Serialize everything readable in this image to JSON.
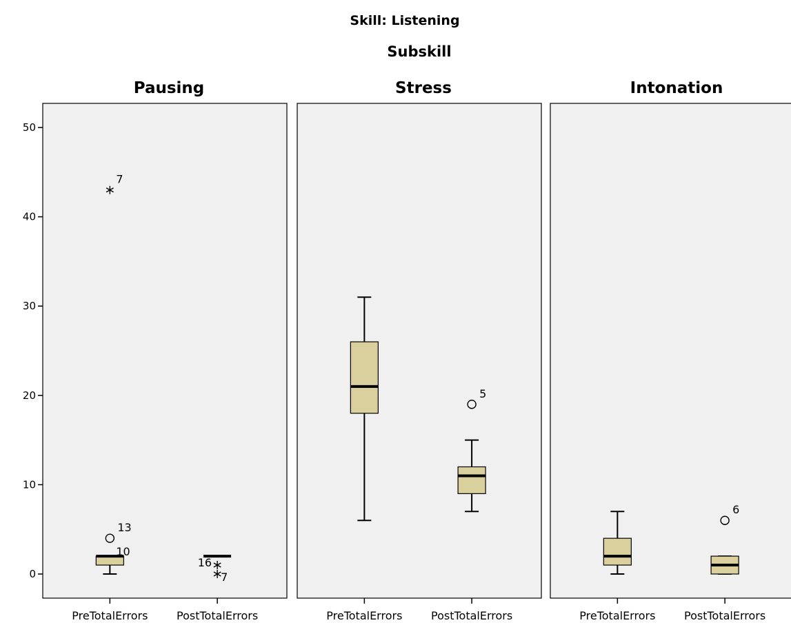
{
  "chart_data": {
    "type": "boxplot",
    "title": "Skill: Listening",
    "subtitle": "Subskill",
    "ylim": [
      -3,
      52
    ],
    "yticks": [
      0,
      10,
      20,
      30,
      40,
      50
    ],
    "categories": [
      "PreTotalErrors",
      "PostTotalErrors"
    ],
    "colors": {
      "box_fill": "#d9d09d",
      "panel_bg": "#f0f0f0",
      "stroke": "#000000"
    },
    "panels": [
      {
        "name": "Pausing",
        "boxes": [
          {
            "category": "PreTotalErrors",
            "min": 0,
            "q1": 1,
            "median": 2,
            "q3": 2,
            "max": 2,
            "outliers": [
              {
                "value": 43,
                "label": "7",
                "marker": "star"
              },
              {
                "value": 4,
                "label": "13",
                "marker": "circle"
              },
              {
                "value": 2,
                "label": "10",
                "marker": "none"
              }
            ]
          },
          {
            "category": "PostTotalErrors",
            "min": 2,
            "q1": 2,
            "median": 2,
            "q3": 2,
            "max": 2,
            "outliers": [
              {
                "value": 1,
                "label": "16",
                "marker": "star"
              },
              {
                "value": 0,
                "label": "7",
                "marker": "star"
              }
            ]
          }
        ]
      },
      {
        "name": "Stress",
        "boxes": [
          {
            "category": "PreTotalErrors",
            "min": 6,
            "q1": 18,
            "median": 21,
            "q3": 26,
            "max": 31,
            "outliers": []
          },
          {
            "category": "PostTotalErrors",
            "min": 7,
            "q1": 9,
            "median": 11,
            "q3": 12,
            "max": 15,
            "outliers": [
              {
                "value": 19,
                "label": "5",
                "marker": "circle"
              }
            ]
          }
        ]
      },
      {
        "name": "Intonation",
        "boxes": [
          {
            "category": "PreTotalErrors",
            "min": 0,
            "q1": 1,
            "median": 2,
            "q3": 4,
            "max": 7,
            "outliers": []
          },
          {
            "category": "PostTotalErrors",
            "min": 0,
            "q1": 0,
            "median": 1,
            "q3": 2,
            "max": 2,
            "outliers": [
              {
                "value": 6,
                "label": "6",
                "marker": "circle"
              }
            ]
          }
        ]
      }
    ]
  }
}
